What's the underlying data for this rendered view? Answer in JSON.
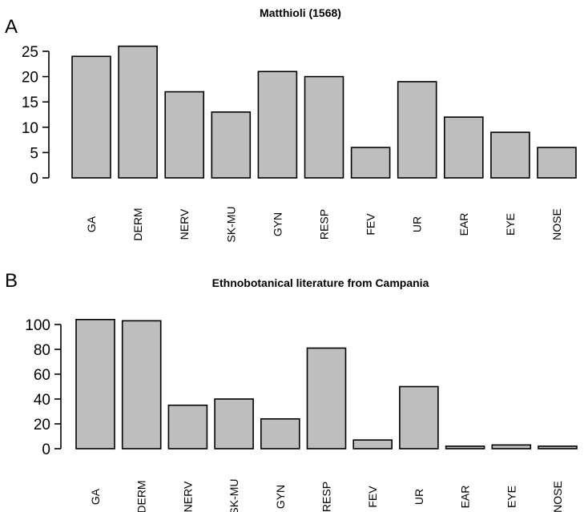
{
  "colors": {
    "bar_fill": "#bebebe",
    "bar_stroke": "#000000",
    "background": "#ffffff"
  },
  "panels": [
    {
      "letter": "A",
      "title": "Matthioli (1568)"
    },
    {
      "letter": "B",
      "title": "Ethnobotanical literature from Campania"
    }
  ],
  "chart_data": [
    {
      "type": "bar",
      "title": "Matthioli (1568)",
      "categories": [
        "GA",
        "DERM",
        "NERV",
        "SK-MU",
        "GYN",
        "RESP",
        "FEV",
        "UR",
        "EAR",
        "EYE",
        "NOSE"
      ],
      "values": [
        24,
        26,
        17,
        13,
        21,
        20,
        6,
        19,
        12,
        9,
        6
      ],
      "ylim": [
        0,
        25
      ],
      "yticks": [
        0,
        5,
        10,
        15,
        20,
        25
      ],
      "xlabel": "",
      "ylabel": "",
      "grid": false,
      "legend": "none"
    },
    {
      "type": "bar",
      "title": "Ethnobotanical literature from Campania",
      "categories": [
        "GA",
        "DERM",
        "NERV",
        "SK-MU",
        "GYN",
        "RESP",
        "FEV",
        "UR",
        "EAR",
        "EYE",
        "NOSE"
      ],
      "values": [
        104,
        103,
        35,
        40,
        24,
        81,
        7,
        50,
        2,
        3,
        2
      ],
      "ylim": [
        0,
        100
      ],
      "yticks": [
        0,
        20,
        40,
        60,
        80,
        100
      ],
      "xlabel": "",
      "ylabel": "",
      "grid": false,
      "legend": "none"
    }
  ]
}
